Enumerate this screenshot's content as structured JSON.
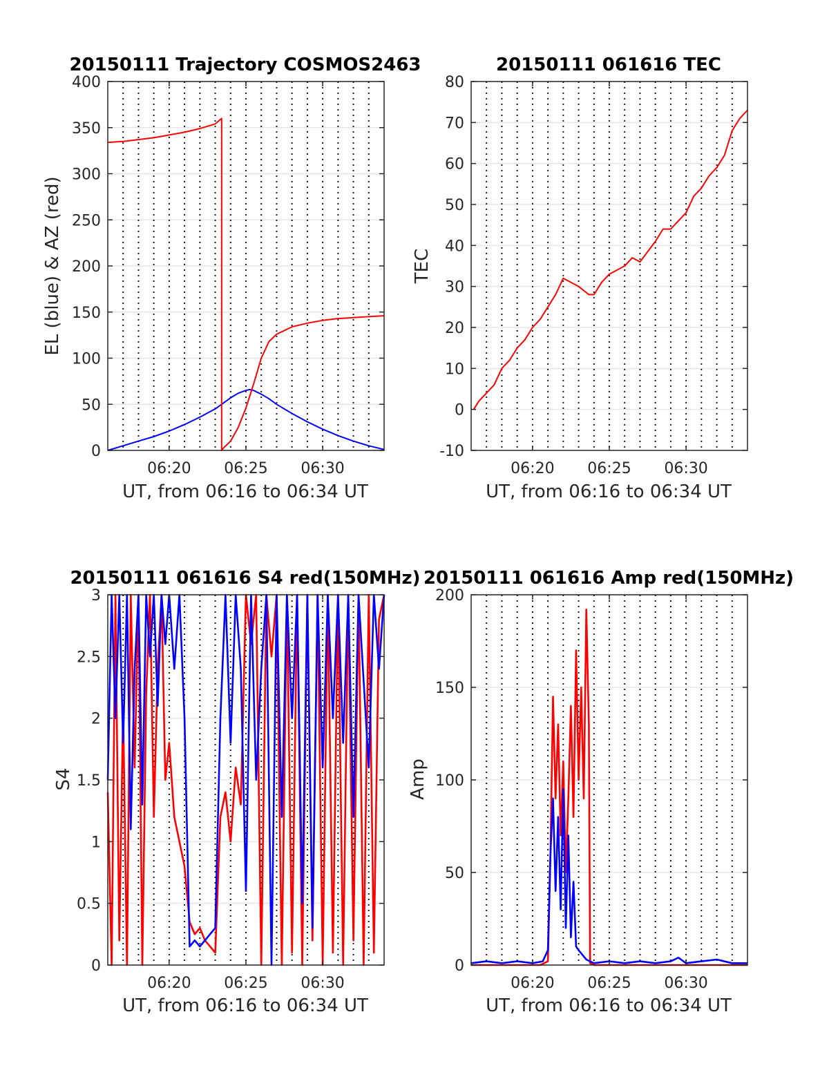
{
  "figure_colors": {
    "series_red": "#ff0000",
    "series_blue": "#0000ff",
    "grid_solid": "#e6e6e6",
    "grid_dotted": "#000000",
    "axis": "#262626"
  },
  "chart_data": [
    {
      "type": "line",
      "title": "20150111 Trajectory COSMOS2463",
      "xlabel": "UT, from 06:16 to 06:34 UT",
      "ylabel": "EL (blue) & AZ (red)",
      "xlim": [
        "06:16",
        "06:34"
      ],
      "ylim": [
        0,
        400
      ],
      "x_ticks": [
        "06:20",
        "06:25",
        "06:30"
      ],
      "y_ticks": [
        0,
        50,
        100,
        150,
        200,
        250,
        300,
        350,
        400
      ],
      "grid": true,
      "series": [
        {
          "color": "#0000ff",
          "x": [
            "06:16:00",
            "06:17:00",
            "06:18:00",
            "06:19:00",
            "06:20:00",
            "06:21:00",
            "06:22:00",
            "06:23:00",
            "06:24:00",
            "06:24:30",
            "06:25:00",
            "06:25:15",
            "06:25:30",
            "06:26:00",
            "06:26:30",
            "06:27:00",
            "06:28:00",
            "06:29:00",
            "06:30:00",
            "06:31:00",
            "06:32:00",
            "06:33:00",
            "06:34:00"
          ],
          "y": [
            0,
            5,
            10,
            15,
            21,
            28,
            36,
            45,
            57,
            62,
            65,
            66,
            65,
            61,
            56,
            50,
            40,
            31,
            23,
            16,
            10,
            5,
            1
          ]
        },
        {
          "color": "#ff0000",
          "x": [
            "06:16:00",
            "06:17:00",
            "06:18:00",
            "06:19:00",
            "06:20:00",
            "06:21:00",
            "06:22:00",
            "06:23:00",
            "06:23:25",
            "06:23:25",
            "06:23:30",
            "06:24:00",
            "06:24:30",
            "06:25:00",
            "06:25:30",
            "06:26:00",
            "06:26:30",
            "06:27:00",
            "06:28:00",
            "06:29:00",
            "06:30:00",
            "06:31:00",
            "06:32:00",
            "06:33:00",
            "06:34:00"
          ],
          "y": [
            334,
            335,
            337,
            339,
            342,
            345,
            349,
            354,
            360,
            0,
            2,
            10,
            25,
            46,
            72,
            100,
            118,
            126,
            134,
            138,
            141,
            143,
            144,
            145,
            146
          ]
        }
      ]
    },
    {
      "type": "line",
      "title": "20150111 061616 TEC",
      "xlabel": "UT, from 06:16 to 06:34 UT",
      "ylabel": "TEC",
      "xlim": [
        "06:16",
        "06:34"
      ],
      "ylim": [
        -10,
        80
      ],
      "x_ticks": [
        "06:20",
        "06:25",
        "06:30"
      ],
      "y_ticks": [
        -10,
        0,
        10,
        20,
        30,
        40,
        50,
        60,
        70,
        80
      ],
      "grid": true,
      "series": [
        {
          "color": "#ff0000",
          "x": [
            "06:16:10",
            "06:16:30",
            "06:17:00",
            "06:17:30",
            "06:18:00",
            "06:18:30",
            "06:19:00",
            "06:19:30",
            "06:20:00",
            "06:20:30",
            "06:21:00",
            "06:21:30",
            "06:22:00",
            "06:23:00",
            "06:23:40",
            "06:24:00",
            "06:24:30",
            "06:25:00",
            "06:26:00",
            "06:26:30",
            "06:27:00",
            "06:28:00",
            "06:28:30",
            "06:29:00",
            "06:30:00",
            "06:30:30",
            "06:31:00",
            "06:31:30",
            "06:32:00",
            "06:32:30",
            "06:33:00",
            "06:33:30",
            "06:34:00"
          ],
          "y": [
            0,
            2,
            4,
            6,
            10,
            12,
            15,
            17,
            20,
            22,
            25,
            28,
            32,
            30,
            28,
            28,
            31,
            33,
            35,
            37,
            36,
            41,
            44,
            44,
            48,
            52,
            54,
            57,
            59,
            62,
            68,
            71,
            73
          ]
        }
      ]
    },
    {
      "type": "line",
      "title": "20150111 061616 S4 red(150MHz)",
      "xlabel": "UT, from 06:16 to 06:34 UT",
      "ylabel": "S4",
      "xlim": [
        "06:16",
        "06:34"
      ],
      "ylim": [
        0,
        3
      ],
      "x_ticks": [
        "06:20",
        "06:25",
        "06:30"
      ],
      "y_ticks": [
        0,
        0.5,
        1,
        1.5,
        2,
        2.5,
        3
      ],
      "grid": true,
      "series": [
        {
          "color": "#ff0000",
          "x": [
            "06:16:00",
            "06:16:15",
            "06:16:30",
            "06:16:45",
            "06:17:00",
            "06:17:15",
            "06:17:30",
            "06:17:45",
            "06:18:00",
            "06:18:15",
            "06:18:30",
            "06:18:45",
            "06:19:00",
            "06:19:15",
            "06:19:30",
            "06:19:45",
            "06:20:00",
            "06:20:20",
            "06:20:40",
            "06:21:00",
            "06:21:20",
            "06:21:40",
            "06:22:00",
            "06:22:20",
            "06:22:40",
            "06:23:00",
            "06:23:20",
            "06:23:40",
            "06:24:00",
            "06:24:20",
            "06:24:40",
            "06:25:00",
            "06:25:20",
            "06:25:40",
            "06:26:00",
            "06:26:20",
            "06:26:40",
            "06:27:00",
            "06:27:20",
            "06:27:40",
            "06:28:00",
            "06:28:20",
            "06:28:40",
            "06:29:00",
            "06:29:20",
            "06:29:40",
            "06:30:00",
            "06:30:20",
            "06:30:40",
            "06:31:00",
            "06:31:20",
            "06:31:40",
            "06:32:00",
            "06:32:20",
            "06:32:40",
            "06:33:00",
            "06:33:20",
            "06:33:40",
            "06:34:00"
          ],
          "y": [
            1.4,
            0,
            3,
            0.2,
            2.1,
            0,
            3,
            1.6,
            3,
            0,
            2.2,
            3,
            1.2,
            2.4,
            3,
            1.5,
            1.8,
            1.2,
            1.0,
            0.8,
            0.35,
            0.25,
            0.3,
            0.2,
            0.15,
            0.1,
            1.2,
            1.4,
            1.0,
            1.6,
            1.3,
            3,
            2.6,
            3,
            0,
            3,
            2.5,
            3,
            0,
            3,
            0.1,
            3,
            0,
            3,
            0.2,
            3,
            0,
            3,
            0.1,
            3,
            0,
            3,
            0.2,
            3,
            0,
            3,
            0.1,
            2.8,
            3
          ]
        },
        {
          "color": "#0000ff",
          "x": [
            "06:16:00",
            "06:16:15",
            "06:16:30",
            "06:16:45",
            "06:17:00",
            "06:17:15",
            "06:17:30",
            "06:17:45",
            "06:18:00",
            "06:18:15",
            "06:18:30",
            "06:18:45",
            "06:19:00",
            "06:19:15",
            "06:19:30",
            "06:19:45",
            "06:20:00",
            "06:20:20",
            "06:20:40",
            "06:21:00",
            "06:21:20",
            "06:21:40",
            "06:22:00",
            "06:22:20",
            "06:22:40",
            "06:23:00",
            "06:23:20",
            "06:23:40",
            "06:24:00",
            "06:24:20",
            "06:24:40",
            "06:25:00",
            "06:25:20",
            "06:25:40",
            "06:26:00",
            "06:26:20",
            "06:26:40",
            "06:27:00",
            "06:27:20",
            "06:27:40",
            "06:28:00",
            "06:28:20",
            "06:28:40",
            "06:29:00",
            "06:29:20",
            "06:29:40",
            "06:30:00",
            "06:30:20",
            "06:30:40",
            "06:31:00",
            "06:31:20",
            "06:31:40",
            "06:32:00",
            "06:32:20",
            "06:32:40",
            "06:33:00",
            "06:33:20",
            "06:33:40",
            "06:34:00"
          ],
          "y": [
            1.5,
            3,
            2.0,
            3,
            1.8,
            3,
            1.1,
            2.4,
            3,
            1.3,
            3,
            2.5,
            3,
            2.1,
            3,
            2.6,
            3,
            2.4,
            3,
            2.0,
            0.15,
            0.2,
            0.15,
            0.2,
            0.25,
            0.3,
            2.0,
            3,
            1.8,
            3,
            2.4,
            0.6,
            3,
            1.5,
            2.4,
            3,
            0,
            3,
            1.2,
            3,
            2.0,
            3,
            0.5,
            3,
            0.3,
            3,
            1.6,
            3,
            2.0,
            3,
            1.8,
            3,
            1.2,
            3,
            2.3,
            1.6,
            3,
            2.4,
            3
          ]
        }
      ]
    },
    {
      "type": "line",
      "title": "20150111 061616 Amp red(150MHz)",
      "xlabel": "UT, from 06:16 to 06:34 UT",
      "ylabel": "Amp",
      "xlim": [
        "06:16",
        "06:34"
      ],
      "ylim": [
        0,
        200
      ],
      "x_ticks": [
        "06:20",
        "06:25",
        "06:30"
      ],
      "y_ticks": [
        0,
        50,
        100,
        150,
        200
      ],
      "grid": true,
      "series": [
        {
          "color": "#ff0000",
          "x": [
            "06:16:00",
            "06:20:30",
            "06:21:00",
            "06:21:10",
            "06:21:20",
            "06:21:30",
            "06:21:40",
            "06:21:50",
            "06:22:00",
            "06:22:10",
            "06:22:20",
            "06:22:30",
            "06:22:40",
            "06:22:50",
            "06:23:00",
            "06:23:10",
            "06:23:20",
            "06:23:30",
            "06:23:40",
            "06:23:45",
            "06:24:00",
            "06:34:00"
          ],
          "y": [
            0,
            0,
            2,
            60,
            145,
            90,
            130,
            70,
            110,
            50,
            90,
            140,
            80,
            170,
            100,
            150,
            90,
            192,
            130,
            1,
            0,
            0
          ]
        },
        {
          "color": "#0000ff",
          "x": [
            "06:16:00",
            "06:17:00",
            "06:18:00",
            "06:19:00",
            "06:20:00",
            "06:20:40",
            "06:21:00",
            "06:21:10",
            "06:21:20",
            "06:21:30",
            "06:21:40",
            "06:21:50",
            "06:22:00",
            "06:22:10",
            "06:22:20",
            "06:22:30",
            "06:22:40",
            "06:22:50",
            "06:23:00",
            "06:23:30",
            "06:24:00",
            "06:25:00",
            "06:26:00",
            "06:27:00",
            "06:28:00",
            "06:29:00",
            "06:29:30",
            "06:30:00",
            "06:31:00",
            "06:32:00",
            "06:33:00",
            "06:34:00"
          ],
          "y": [
            1,
            2,
            1,
            2,
            1,
            2,
            8,
            60,
            90,
            40,
            80,
            30,
            95,
            20,
            70,
            15,
            45,
            10,
            8,
            3,
            1,
            2,
            1,
            2,
            1,
            2,
            4,
            1,
            2,
            3,
            1,
            1
          ]
        }
      ]
    }
  ]
}
